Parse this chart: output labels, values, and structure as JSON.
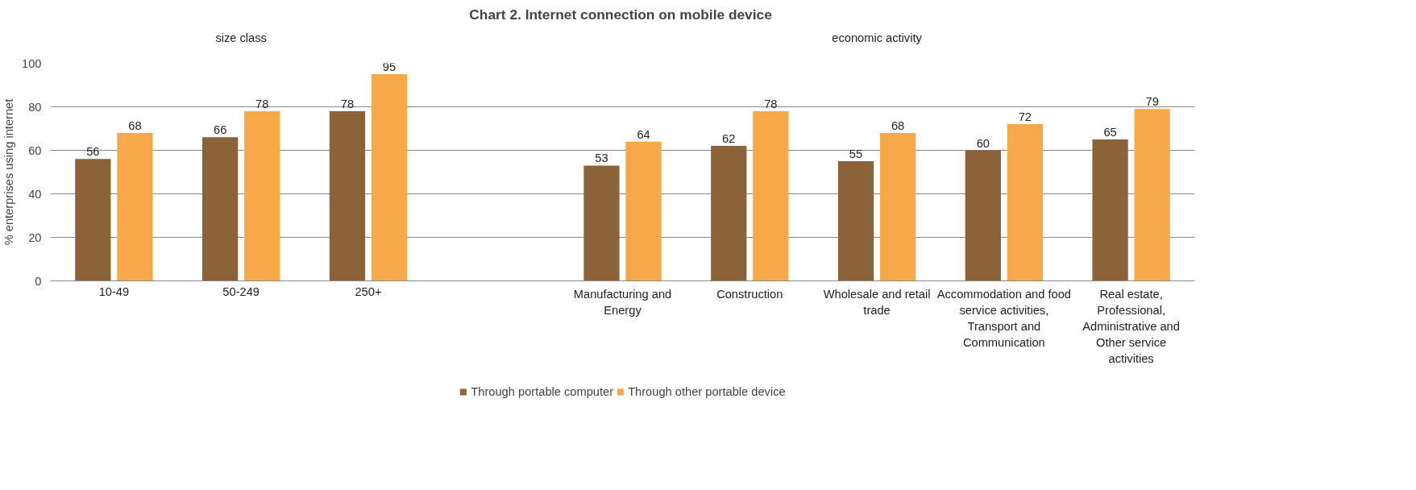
{
  "chart_data": {
    "type": "bar",
    "title": "Chart 2.  Internet connection on mobile device",
    "ylabel": "% enterprises using internet",
    "annotations": [
      "size class",
      "economic activity"
    ],
    "categories": [
      "10-49",
      "50-249",
      "250+",
      null,
      "Manufacturing and Energy",
      "Construction",
      "Wholesale and retail trade",
      "Accommodation and food service activities, Transport and Communication",
      "Real estate, Professional, Administrative and Other service activities"
    ],
    "series": [
      {
        "name": "Through portable computer",
        "color": "#8c6239",
        "values": [
          56,
          66,
          78,
          null,
          53,
          62,
          55,
          60,
          65
        ]
      },
      {
        "name": "Through other portable device",
        "color": "#f7a94a",
        "values": [
          68,
          78,
          95,
          null,
          64,
          78,
          68,
          72,
          79
        ]
      }
    ],
    "ylim": [
      0,
      100
    ],
    "yticks": [
      0,
      20,
      40,
      60,
      80,
      100
    ],
    "grid": "y",
    "legend": "bottom",
    "data_labels": true
  }
}
